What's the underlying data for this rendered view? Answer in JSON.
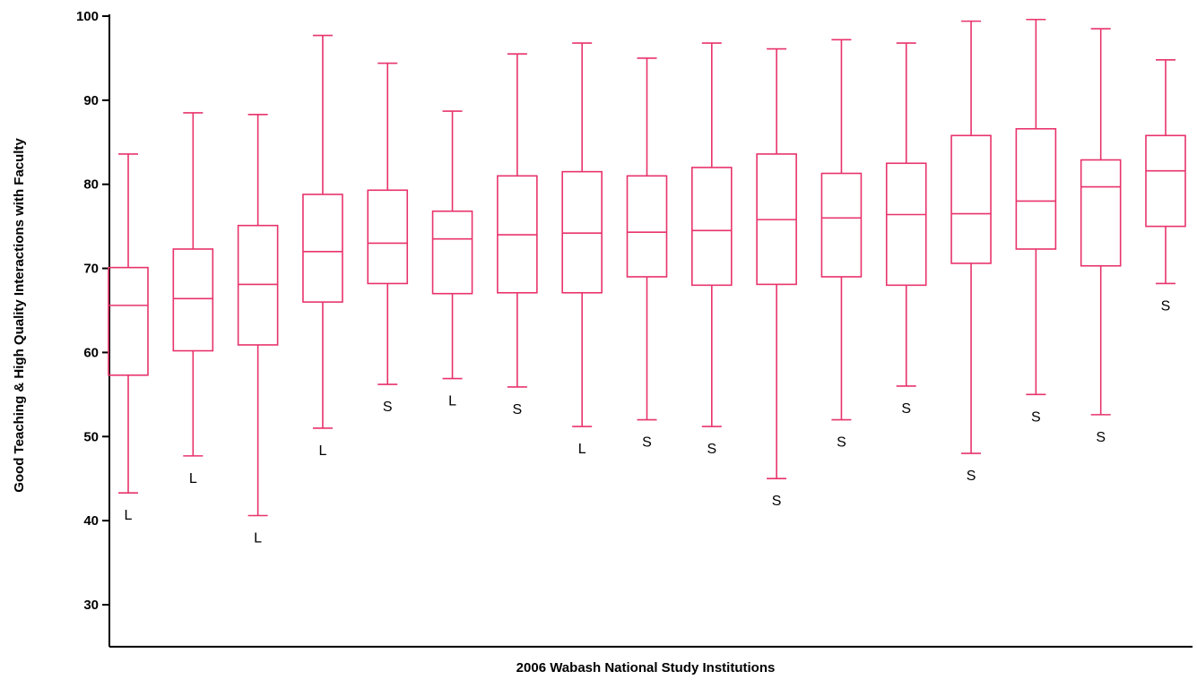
{
  "chart_data": {
    "type": "boxplot",
    "title": "",
    "xlabel": "2006 Wabash National Study Institutions",
    "ylabel": "Good Teaching & High Quality Interactions with Faculty",
    "ylim": [
      25,
      100
    ],
    "yticks": [
      30,
      40,
      50,
      60,
      70,
      80,
      90,
      100
    ],
    "grid": false,
    "color": "#e8336b",
    "boxes": [
      {
        "label": "L",
        "min": 43.3,
        "q1": 57.3,
        "median": 65.6,
        "q3": 70.1,
        "max": 83.6
      },
      {
        "label": "L",
        "min": 47.7,
        "q1": 60.2,
        "median": 66.4,
        "q3": 72.3,
        "max": 88.5
      },
      {
        "label": "L",
        "min": 40.6,
        "q1": 60.9,
        "median": 68.1,
        "q3": 75.1,
        "max": 88.3
      },
      {
        "label": "L",
        "min": 51.0,
        "q1": 66.0,
        "median": 72.0,
        "q3": 78.8,
        "max": 97.7
      },
      {
        "label": "S",
        "min": 56.2,
        "q1": 68.2,
        "median": 73.0,
        "q3": 79.3,
        "max": 94.4
      },
      {
        "label": "L",
        "min": 56.9,
        "q1": 67.0,
        "median": 73.5,
        "q3": 76.8,
        "max": 88.7
      },
      {
        "label": "S",
        "min": 55.9,
        "q1": 67.1,
        "median": 74.0,
        "q3": 81.0,
        "max": 95.5
      },
      {
        "label": "L",
        "min": 51.2,
        "q1": 67.1,
        "median": 74.2,
        "q3": 81.5,
        "max": 96.8
      },
      {
        "label": "S",
        "min": 52.0,
        "q1": 69.0,
        "median": 74.3,
        "q3": 81.0,
        "max": 95.0
      },
      {
        "label": "S",
        "min": 51.2,
        "q1": 68.0,
        "median": 74.5,
        "q3": 82.0,
        "max": 96.8
      },
      {
        "label": "S",
        "min": 45.0,
        "q1": 68.1,
        "median": 75.8,
        "q3": 83.6,
        "max": 96.1
      },
      {
        "label": "S",
        "min": 52.0,
        "q1": 69.0,
        "median": 76.0,
        "q3": 81.3,
        "max": 97.2
      },
      {
        "label": "S",
        "min": 56.0,
        "q1": 68.0,
        "median": 76.4,
        "q3": 82.5,
        "max": 96.8
      },
      {
        "label": "S",
        "min": 48.0,
        "q1": 70.6,
        "median": 76.5,
        "q3": 85.8,
        "max": 99.4
      },
      {
        "label": "S",
        "min": 55.0,
        "q1": 72.3,
        "median": 78.0,
        "q3": 86.6,
        "max": 99.6
      },
      {
        "label": "S",
        "min": 52.6,
        "q1": 70.3,
        "median": 79.7,
        "q3": 82.9,
        "max": 98.5
      },
      {
        "label": "S",
        "min": 68.2,
        "q1": 75.0,
        "median": 81.6,
        "q3": 85.8,
        "max": 94.8
      }
    ]
  }
}
